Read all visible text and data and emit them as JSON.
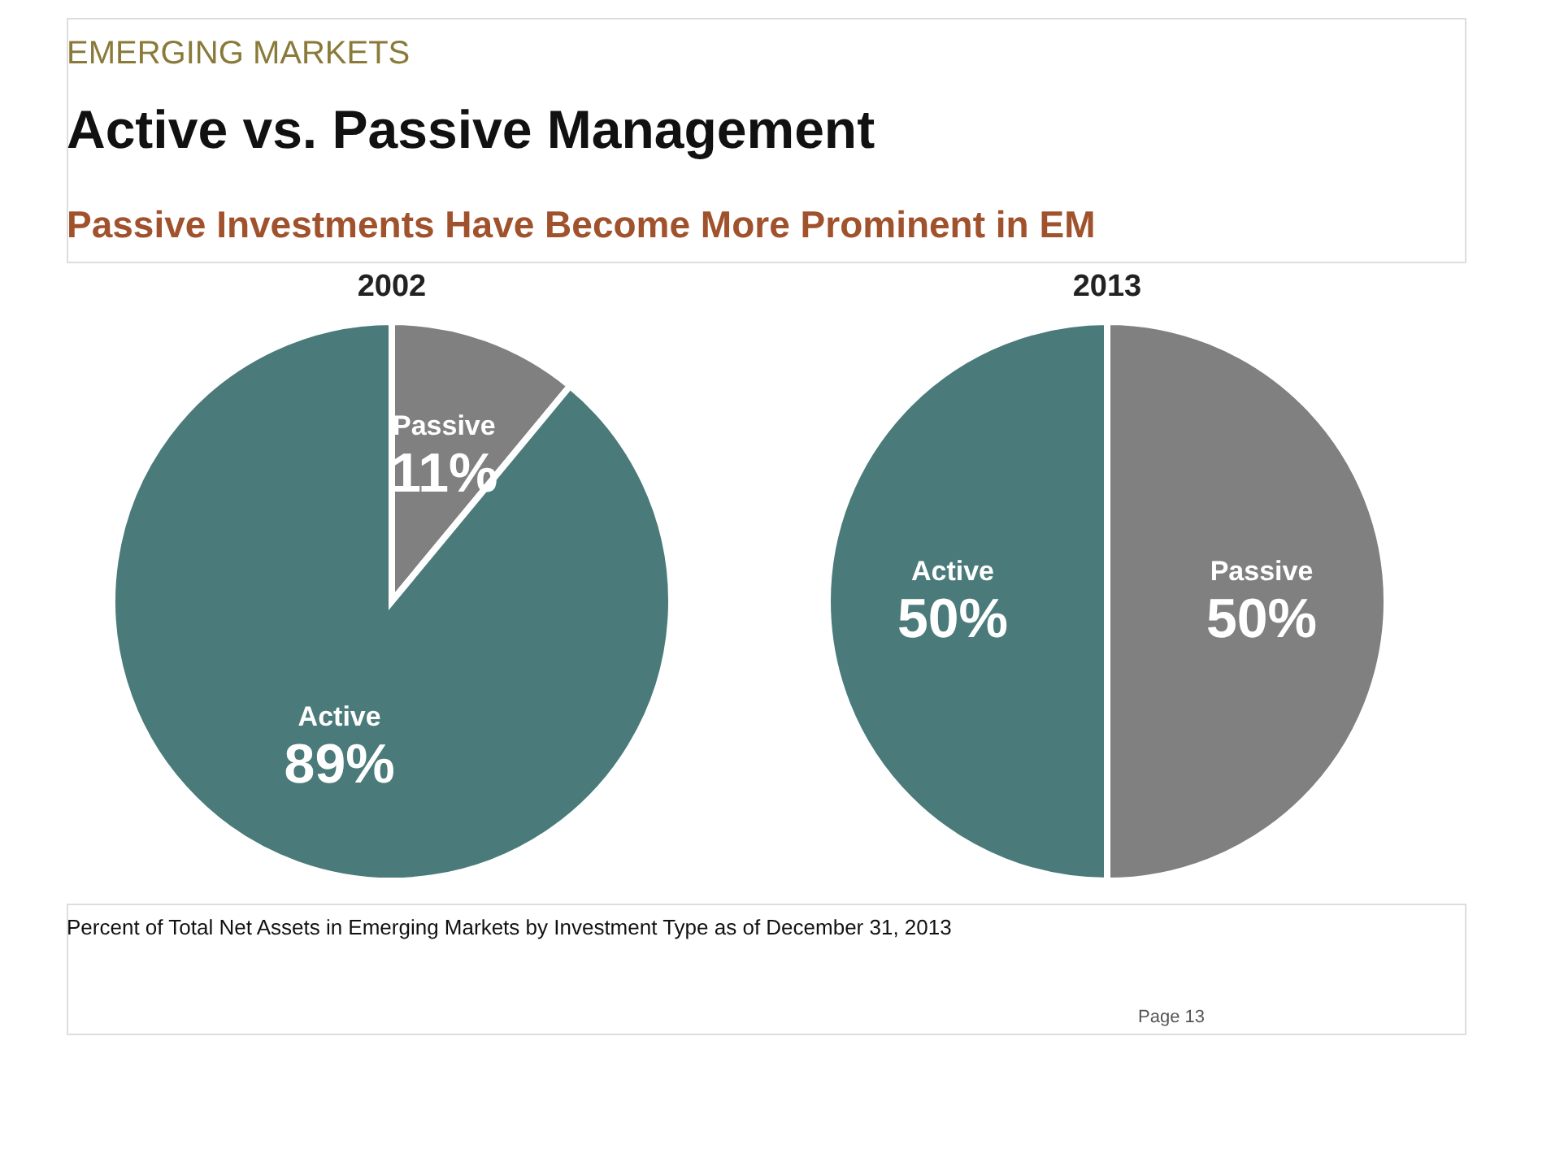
{
  "chart_data": [
    {
      "type": "pie",
      "title": "2002",
      "categories": [
        "Passive",
        "Active"
      ],
      "values": [
        11,
        89
      ],
      "colors": [
        "#808080",
        "#4a7a7a"
      ],
      "value_labels": [
        "11%",
        "89%"
      ],
      "annotations": [
        "EMERGING MARKETS",
        "Active vs. Passive Management",
        "Passive Investments Have Become More Prominent in EM",
        "Percent  of Total Net Assets in Emerging Markets by Investment Type as of December 31, 2013",
        "Page 13"
      ]
    },
    {
      "type": "pie",
      "title": "2013",
      "categories": [
        "Passive",
        "Active"
      ],
      "values": [
        50,
        50
      ],
      "colors": [
        "#808080",
        "#4a7a7a"
      ],
      "value_labels": [
        "50%",
        "50%"
      ]
    }
  ]
}
